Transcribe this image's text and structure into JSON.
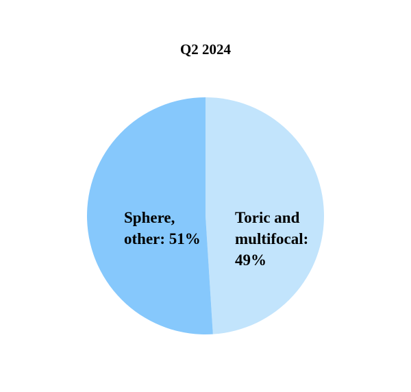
{
  "chart_data": {
    "type": "pie",
    "title": "Q2 2024",
    "slices": [
      {
        "label": "Toric and multifocal",
        "value": 49,
        "display": "Toric and\nmultifocal:\n49%",
        "color": "#C2E4FC"
      },
      {
        "label": "Sphere, other",
        "value": 51,
        "display": "Sphere,\nother: 51%",
        "color": "#86C8FC"
      }
    ],
    "start_angle": "top",
    "direction": "clockwise",
    "legend": "none"
  }
}
